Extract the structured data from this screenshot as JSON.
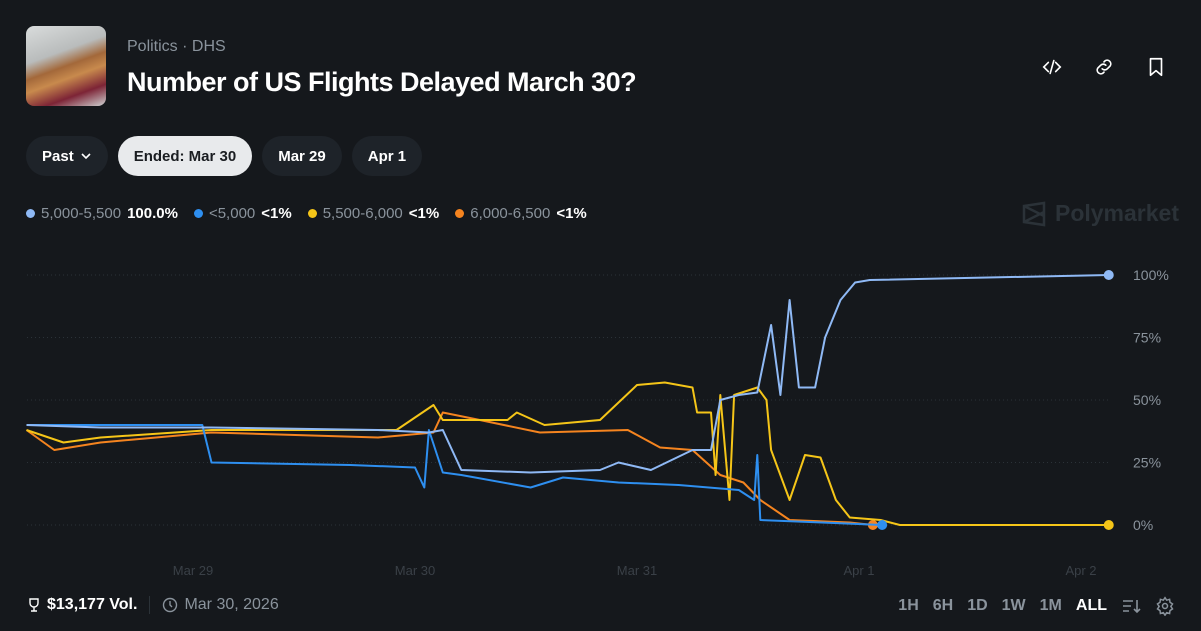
{
  "header": {
    "category": "Politics",
    "subcategory": "DHS",
    "separator": "·",
    "title": "Number of US Flights Delayed March 30?",
    "icons": [
      "code-icon",
      "link-icon",
      "bookmark-icon"
    ]
  },
  "filters": {
    "dropdown": "Past",
    "pills": [
      {
        "label": "Ended: Mar 30",
        "active": true
      },
      {
        "label": "Mar 29",
        "active": false
      },
      {
        "label": "Apr 1",
        "active": false
      }
    ]
  },
  "watermark": "Polymarket",
  "footer": {
    "volume": "$13,177 Vol.",
    "date": "Mar 30, 2026",
    "ranges": [
      "1H",
      "6H",
      "1D",
      "1W",
      "1M",
      "ALL"
    ],
    "active_range": "ALL"
  },
  "chart_data": {
    "type": "line",
    "grid": true,
    "legend": "top-left",
    "ylim": [
      0,
      100
    ],
    "yticks": [
      "0%",
      "25%",
      "50%",
      "75%",
      "100%"
    ],
    "xticks": [
      "Mar 29",
      "Mar 30",
      "Mar 31",
      "Apr 1",
      "Apr 2"
    ],
    "series": [
      {
        "name": "5,000-5,500",
        "label": "100.0%",
        "color": "#8fb9f5",
        "points": [
          [
            "2026-03-28T06:00",
            40
          ],
          [
            "2026-03-28T14:00",
            39
          ],
          [
            "2026-03-29T02:00",
            39
          ],
          [
            "2026-03-29T20:00",
            38
          ],
          [
            "2026-03-30T01:30",
            37
          ],
          [
            "2026-03-30T03:00",
            38
          ],
          [
            "2026-03-30T05:00",
            22
          ],
          [
            "2026-03-30T12:30",
            21
          ],
          [
            "2026-03-30T20:00",
            22
          ],
          [
            "2026-03-30T22:00",
            25
          ],
          [
            "2026-03-31T01:30",
            22
          ],
          [
            "2026-03-31T06:00",
            30
          ],
          [
            "2026-03-31T08:00",
            30
          ],
          [
            "2026-03-31T09:00",
            50
          ],
          [
            "2026-03-31T11:00",
            52
          ],
          [
            "2026-03-31T13:00",
            53
          ],
          [
            "2026-03-31T14:30",
            80
          ],
          [
            "2026-03-31T15:30",
            52
          ],
          [
            "2026-03-31T16:30",
            90
          ],
          [
            "2026-03-31T17:30",
            55
          ],
          [
            "2026-03-31T19:15",
            55
          ],
          [
            "2026-03-31T20:20",
            75
          ],
          [
            "2026-03-31T22:00",
            90
          ],
          [
            "2026-03-31T23:35",
            97
          ],
          [
            "2026-04-01T01:10",
            98
          ],
          [
            "2026-04-02T03:00",
            100
          ]
        ]
      },
      {
        "name": "<5,000",
        "label": "<1%",
        "color": "#2e8ff0",
        "points": [
          [
            "2026-03-28T06:00",
            40
          ],
          [
            "2026-03-29T01:00",
            40
          ],
          [
            "2026-03-29T02:00",
            25
          ],
          [
            "2026-03-29T17:00",
            24
          ],
          [
            "2026-03-30T00:00",
            23
          ],
          [
            "2026-03-30T01:00",
            15
          ],
          [
            "2026-03-30T01:30",
            38
          ],
          [
            "2026-03-30T03:00",
            21
          ],
          [
            "2026-03-30T05:00",
            20
          ],
          [
            "2026-03-30T12:30",
            15
          ],
          [
            "2026-03-30T16:00",
            19
          ],
          [
            "2026-03-30T22:00",
            17
          ],
          [
            "2026-03-31T04:30",
            16
          ],
          [
            "2026-03-31T11:00",
            14
          ],
          [
            "2026-03-31T12:40",
            10
          ],
          [
            "2026-03-31T13:00",
            28
          ],
          [
            "2026-03-31T13:20",
            2
          ],
          [
            "2026-03-31T20:00",
            1
          ],
          [
            "2026-04-01T02:30",
            0
          ]
        ]
      },
      {
        "name": "5,500-6,000",
        "label": "<1%",
        "color": "#f5c518",
        "points": [
          [
            "2026-03-28T06:00",
            38
          ],
          [
            "2026-03-28T10:00",
            33
          ],
          [
            "2026-03-28T14:00",
            35
          ],
          [
            "2026-03-29T02:00",
            38
          ],
          [
            "2026-03-29T22:00",
            38
          ],
          [
            "2026-03-30T02:00",
            48
          ],
          [
            "2026-03-30T03:00",
            42
          ],
          [
            "2026-03-30T10:00",
            42
          ],
          [
            "2026-03-30T11:00",
            45
          ],
          [
            "2026-03-30T14:00",
            40
          ],
          [
            "2026-03-30T20:00",
            42
          ],
          [
            "2026-03-31T00:00",
            56
          ],
          [
            "2026-03-31T03:00",
            57
          ],
          [
            "2026-03-31T06:00",
            55
          ],
          [
            "2026-03-31T06:30",
            45
          ],
          [
            "2026-03-31T08:00",
            45
          ],
          [
            "2026-03-31T08:30",
            20
          ],
          [
            "2026-03-31T09:00",
            52
          ],
          [
            "2026-03-31T10:00",
            10
          ],
          [
            "2026-03-31T10:30",
            52
          ],
          [
            "2026-03-31T13:00",
            55
          ],
          [
            "2026-03-31T14:00",
            50
          ],
          [
            "2026-03-31T14:30",
            30
          ],
          [
            "2026-03-31T16:30",
            10
          ],
          [
            "2026-03-31T18:10",
            28
          ],
          [
            "2026-03-31T19:50",
            27
          ],
          [
            "2026-03-31T21:30",
            10
          ],
          [
            "2026-03-31T23:00",
            3
          ],
          [
            "2026-04-01T02:20",
            2
          ],
          [
            "2026-04-01T04:25",
            0
          ],
          [
            "2026-04-02T03:00",
            0
          ]
        ]
      },
      {
        "name": "6,000-6,500",
        "label": "<1%",
        "color": "#f5841f",
        "points": [
          [
            "2026-03-28T06:00",
            38
          ],
          [
            "2026-03-28T09:00",
            30
          ],
          [
            "2026-03-28T14:00",
            33
          ],
          [
            "2026-03-29T02:00",
            37
          ],
          [
            "2026-03-29T20:00",
            35
          ],
          [
            "2026-03-30T02:00",
            37
          ],
          [
            "2026-03-30T03:00",
            45
          ],
          [
            "2026-03-30T07:00",
            42
          ],
          [
            "2026-03-30T13:30",
            37
          ],
          [
            "2026-03-30T23:00",
            38
          ],
          [
            "2026-03-31T02:30",
            31
          ],
          [
            "2026-03-31T06:00",
            30
          ],
          [
            "2026-03-31T09:00",
            20
          ],
          [
            "2026-03-31T11:30",
            17
          ],
          [
            "2026-03-31T13:20",
            10
          ],
          [
            "2026-03-31T16:30",
            2
          ],
          [
            "2026-03-31T23:00",
            1
          ],
          [
            "2026-04-01T01:30",
            0
          ]
        ]
      }
    ]
  }
}
